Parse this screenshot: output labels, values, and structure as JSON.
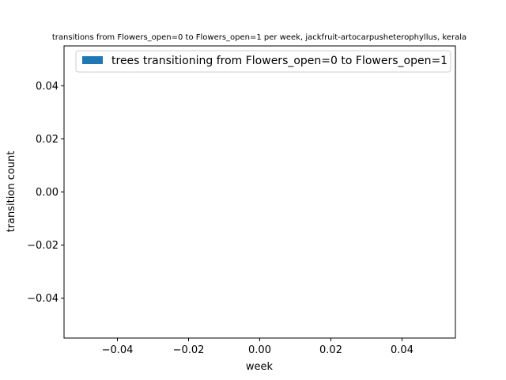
{
  "chart_data": {
    "type": "bar",
    "title": "transitions from Flowers_open=0 to Flowers_open=1 per week, jackfruit-artocarpusheterophyllus, kerala",
    "xlabel": "week",
    "ylabel": "transition count",
    "xlim": [
      -0.055,
      0.055
    ],
    "ylim": [
      -0.055,
      0.055
    ],
    "x_ticks": [
      -0.04,
      -0.02,
      0.0,
      0.02,
      0.04
    ],
    "x_tick_labels": [
      "−0.04",
      "−0.02",
      "0.00",
      "0.02",
      "0.04"
    ],
    "y_ticks": [
      -0.04,
      -0.02,
      0.0,
      0.02,
      0.04
    ],
    "y_tick_labels": [
      "−0.04",
      "−0.02",
      "0.00",
      "0.02",
      "0.04"
    ],
    "grid": false,
    "legend_position": "top-right",
    "series": [
      {
        "name": "trees transitioning from Flowers_open=0 to Flowers_open=1",
        "color": "#1f77b4",
        "x": [],
        "values": []
      }
    ]
  }
}
